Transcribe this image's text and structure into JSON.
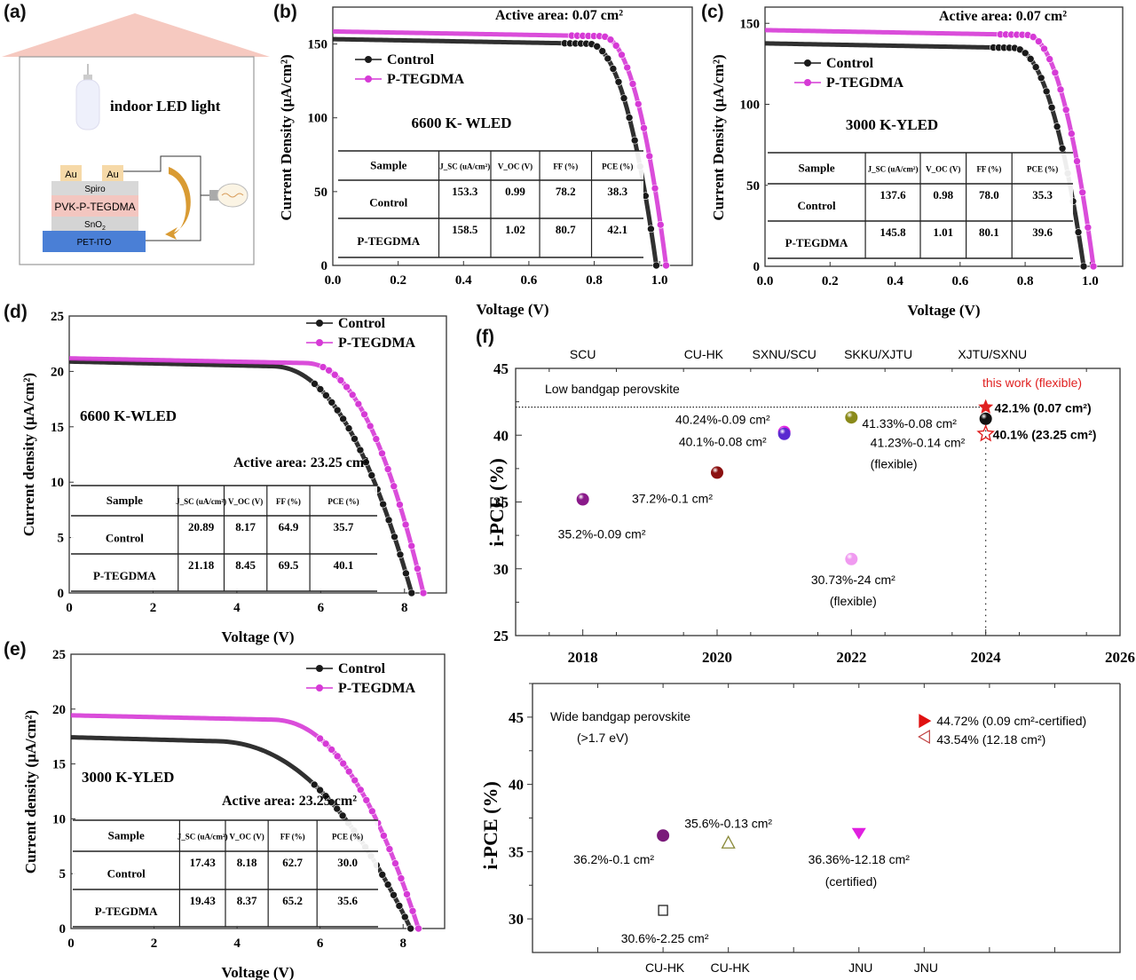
{
  "panels": {
    "a": {
      "label": "(a)",
      "light_label": "indoor LED light",
      "layers": {
        "au_left": "Au",
        "au_right": "Au",
        "spiro": "Spiro",
        "pvk": "PVK-P-TEGDMA",
        "sno2": "SnO",
        "sno2_sub": "2",
        "pet": "PET-ITO"
      },
      "colors": {
        "roof": "#f6c9c0",
        "au": "#f6d9a8",
        "spiro": "#d8d8d8",
        "pvk": "#f3c6c0",
        "sno2": "#d4d4d4",
        "pet": "#4a7fd6",
        "arrow": "#d99b33"
      }
    },
    "b": {
      "label": "(b)"
    },
    "c": {
      "label": "(c)"
    },
    "d": {
      "label": "(d)"
    },
    "e": {
      "label": "(e)"
    },
    "f": {
      "label": "(f)"
    }
  },
  "colors": {
    "control": "#1a1a1a",
    "ptegdma": "#d63ad6",
    "highlight_red": "#e02020"
  },
  "chart_data": [
    {
      "id": "b",
      "type": "line",
      "title": "",
      "annotation_area": "Active area: 0.07 cm²",
      "annotation_source": "6600 K- WLED",
      "xlabel": "Voltage (V)",
      "ylabel": "Current Density (μA/cm²)",
      "xlim": [
        0.0,
        1.1
      ],
      "ylim": [
        0,
        175
      ],
      "xticks": [
        0.0,
        0.2,
        0.4,
        0.6,
        0.8,
        1.0
      ],
      "xtick_labels": [
        "0.0",
        "0.2",
        "0.4",
        "0.6",
        "0.8",
        "1.0"
      ],
      "yticks": [
        0,
        50,
        100,
        150
      ],
      "ytick_labels": [
        "0",
        "50",
        "100",
        "150"
      ],
      "legend": [
        "Control",
        "P-TEGDMA"
      ],
      "legend_position": "upper-left",
      "series": [
        {
          "name": "Control",
          "jsc": 153.3,
          "voc": 0.99,
          "ff": 78.2,
          "pce": 38.3,
          "knee": 0.78
        },
        {
          "name": "P-TEGDMA",
          "jsc": 158.5,
          "voc": 1.02,
          "ff": 80.7,
          "pce": 42.1,
          "knee": 0.82
        }
      ],
      "table": {
        "headers": [
          "Sample",
          "J_SC (uA/cm²)",
          "V_OC (V)",
          "FF (%)",
          "PCE (%)"
        ],
        "rows": [
          [
            "Control",
            "153.3",
            "0.99",
            "78.2",
            "38.3"
          ],
          [
            "P-TEGDMA",
            "158.5",
            "1.02",
            "80.7",
            "42.1"
          ]
        ]
      }
    },
    {
      "id": "c",
      "type": "line",
      "title": "",
      "annotation_area": "Active area: 0.07 cm²",
      "annotation_source": "3000 K-YLED",
      "xlabel": "Voltage (V)",
      "ylabel": "Current Density (μA/cm²)",
      "xlim": [
        0.0,
        1.1
      ],
      "ylim": [
        0,
        160
      ],
      "xticks": [
        0.0,
        0.2,
        0.4,
        0.6,
        0.8,
        1.0
      ],
      "xtick_labels": [
        "0.0",
        "0.2",
        "0.4",
        "0.6",
        "0.8",
        "1.0"
      ],
      "yticks": [
        0,
        50,
        100,
        150
      ],
      "ytick_labels": [
        "0",
        "50",
        "100",
        "150"
      ],
      "legend": [
        "Control",
        "P-TEGDMA"
      ],
      "legend_position": "upper-left",
      "series": [
        {
          "name": "Control",
          "jsc": 137.6,
          "voc": 0.98,
          "ff": 78.0,
          "pce": 35.3,
          "knee": 0.76
        },
        {
          "name": "P-TEGDMA",
          "jsc": 145.8,
          "voc": 1.01,
          "ff": 80.1,
          "pce": 39.6,
          "knee": 0.8
        }
      ],
      "table": {
        "headers": [
          "Sample",
          "J_SC (uA/cm²)",
          "V_OC (V)",
          "FF (%)",
          "PCE (%)"
        ],
        "rows": [
          [
            "Control",
            "137.6",
            "0.98",
            "78.0",
            "35.3"
          ],
          [
            "P-TEGDMA",
            "145.8",
            "1.01",
            "80.1",
            "39.6"
          ]
        ]
      }
    },
    {
      "id": "d",
      "type": "line",
      "title": "",
      "annotation_area": "Active area: 23.25 cm²",
      "annotation_source": "6600 K-WLED",
      "xlabel": "Voltage (V)",
      "ylabel": "Current density (μA/cm²)",
      "xlim": [
        0,
        9
      ],
      "ylim": [
        0,
        25
      ],
      "xticks": [
        0,
        2,
        4,
        6,
        8
      ],
      "xtick_labels": [
        "0",
        "2",
        "4",
        "6",
        "8"
      ],
      "yticks": [
        0,
        5,
        10,
        15,
        20,
        25
      ],
      "ytick_labels": [
        "0",
        "5",
        "10",
        "15",
        "20",
        "25"
      ],
      "legend": [
        "Control",
        "P-TEGDMA"
      ],
      "legend_position": "upper-right",
      "series": [
        {
          "name": "Control",
          "jsc": 20.89,
          "voc": 8.17,
          "ff": 64.9,
          "pce": 35.7,
          "knee": 4.8
        },
        {
          "name": "P-TEGDMA",
          "jsc": 21.18,
          "voc": 8.45,
          "ff": 69.5,
          "pce": 40.1,
          "knee": 5.6
        }
      ],
      "table": {
        "headers": [
          "Sample",
          "J_SC (uA/cm²)",
          "V_OC (V)",
          "FF (%)",
          "PCE (%)"
        ],
        "rows": [
          [
            "Control",
            "20.89",
            "8.17",
            "64.9",
            "35.7"
          ],
          [
            "P-TEGDMA",
            "21.18",
            "8.45",
            "69.5",
            "40.1"
          ]
        ]
      }
    },
    {
      "id": "e",
      "type": "line",
      "title": "",
      "annotation_area": "Active area: 23.25 cm²",
      "annotation_source": "3000 K-YLED",
      "xlabel": "Voltage (V)",
      "ylabel": "Current density (μA/cm²)",
      "xlim": [
        0,
        9
      ],
      "ylim": [
        0,
        25
      ],
      "xticks": [
        0,
        2,
        4,
        6,
        8
      ],
      "xtick_labels": [
        "0",
        "2",
        "4",
        "6",
        "8"
      ],
      "yticks": [
        0,
        5,
        10,
        15,
        20,
        25
      ],
      "ytick_labels": [
        "0",
        "5",
        "10",
        "15",
        "20",
        "25"
      ],
      "legend": [
        "Control",
        "P-TEGDMA"
      ],
      "legend_position": "upper-right",
      "series": [
        {
          "name": "Control",
          "jsc": 17.43,
          "voc": 8.18,
          "ff": 62.7,
          "pce": 30.0,
          "knee": 3.4
        },
        {
          "name": "P-TEGDMA",
          "jsc": 19.43,
          "voc": 8.37,
          "ff": 65.2,
          "pce": 35.6,
          "knee": 4.8
        }
      ],
      "table": {
        "headers": [
          "Sample",
          "J_SC (uA/cm²)",
          "V_OC (V)",
          "FF (%)",
          "PCE (%)"
        ],
        "rows": [
          [
            "Control",
            "17.43",
            "8.18",
            "62.7",
            "30.0"
          ],
          [
            "P-TEGDMA",
            "19.43",
            "8.37",
            "65.2",
            "35.6"
          ]
        ]
      }
    },
    {
      "id": "f-top",
      "type": "scatter",
      "title": "Low bandgap perovskite",
      "xlabel": "",
      "ylabel": "i-PCE (%)",
      "xlim": [
        2017,
        2026
      ],
      "ylim": [
        25,
        45
      ],
      "xticks": [
        2018,
        2020,
        2022,
        2024,
        2026
      ],
      "xtick_labels": [
        "2018",
        "2020",
        "2022",
        "2024",
        "2026"
      ],
      "yticks": [
        25,
        30,
        35,
        40,
        45
      ],
      "ytick_labels": [
        "25",
        "30",
        "35",
        "40",
        "45"
      ],
      "top_labels": [
        {
          "x": 2018,
          "text": "SCU"
        },
        {
          "x": 2019.8,
          "text": "CU-HK"
        },
        {
          "x": 2021,
          "text": "SXNU/SCU"
        },
        {
          "x": 2022.4,
          "text": "SKKU/XJTU"
        },
        {
          "x": 2024.1,
          "text": "XJTU/SXNU"
        }
      ],
      "reference_line_y": 42.1,
      "reference_line_x": 2024,
      "this_work_label": "this work (flexible)",
      "points": [
        {
          "x": 2018,
          "y": 35.2,
          "marker": "sphere",
          "color": "#8a1a8a",
          "label": "35.2%-0.09 cm²"
        },
        {
          "x": 2020,
          "y": 37.2,
          "marker": "sphere",
          "color": "#8b1010",
          "label": "37.2%-0.1 cm²"
        },
        {
          "x": 2021,
          "y": 40.24,
          "marker": "sphere",
          "color": "#e020e0",
          "label": "40.24%-0.09 cm²"
        },
        {
          "x": 2021,
          "y": 40.1,
          "marker": "sphere",
          "color": "#5a2ad0",
          "label": "40.1%-0.08 cm²"
        },
        {
          "x": 2022,
          "y": 41.33,
          "marker": "sphere",
          "color": "#8a8a1a",
          "label": "41.33%-0.08 cm²"
        },
        {
          "x": 2022,
          "y": 30.73,
          "marker": "sphere",
          "color": "#f09af0",
          "label": "30.73%-24 cm² (flexible)"
        },
        {
          "x": 2024,
          "y": 41.23,
          "marker": "sphere",
          "color": "#111111",
          "label": "41.23%-0.14 cm² (flexible)"
        },
        {
          "x": 2024,
          "y": 42.1,
          "marker": "star-filled",
          "color": "#e02020",
          "label": "42.1% (0.07 cm²)"
        },
        {
          "x": 2024,
          "y": 40.1,
          "marker": "star-open",
          "color": "#e02020",
          "label": "40.1% (23.25 cm²)"
        }
      ]
    },
    {
      "id": "f-bottom",
      "type": "scatter",
      "title": "Wide bandgap perovskite (>1.7 eV)",
      "xlabel": "",
      "ylabel": "i-PCE (%)",
      "xlim": [
        2017,
        2026
      ],
      "ylim": [
        27.5,
        47.5
      ],
      "yticks": [
        30,
        35,
        40,
        45
      ],
      "ytick_labels": [
        "30",
        "35",
        "40",
        "45"
      ],
      "bottom_labels": [
        {
          "x": 2019,
          "text": "CU-HK"
        },
        {
          "x": 2020,
          "text": "CU-HK"
        },
        {
          "x": 2022,
          "text": "JNU"
        },
        {
          "x": 2023,
          "text": "JNU"
        }
      ],
      "points": [
        {
          "x": 2019,
          "y": 36.2,
          "marker": "circle-filled",
          "color": "#7a1a7a",
          "label": "36.2%-0.1 cm²"
        },
        {
          "x": 2019,
          "y": 30.6,
          "marker": "square-open",
          "color": "#222222",
          "label": "30.6%-2.25 cm²"
        },
        {
          "x": 2020,
          "y": 35.6,
          "marker": "triangle-up-open",
          "color": "#8a8a3a",
          "label": "35.6%-0.13 cm²"
        },
        {
          "x": 2022,
          "y": 36.36,
          "marker": "triangle-down-filled",
          "color": "#e020e0",
          "label": "36.36%-12.18 cm² (certified)"
        },
        {
          "x": 2023,
          "y": 44.72,
          "marker": "triangle-right-filled",
          "color": "#e01010",
          "label": "44.72% (0.09 cm²-certified)"
        },
        {
          "x": 2023,
          "y": 43.54,
          "marker": "triangle-left-open",
          "color": "#c04040",
          "label": "43.54% (12.18 cm²)"
        }
      ]
    }
  ]
}
